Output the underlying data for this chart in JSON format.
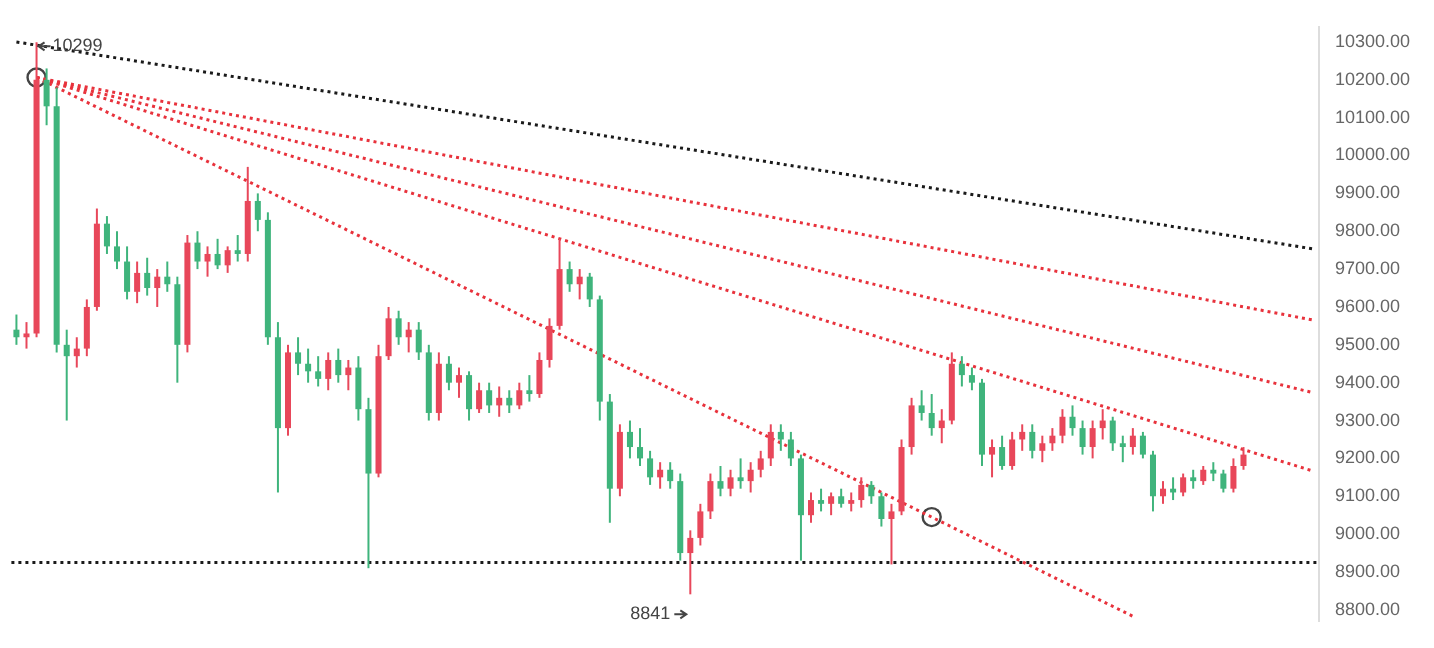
{
  "chart_data": {
    "type": "candlestick",
    "tick_labels": "y",
    "grid": false,
    "legend": false,
    "categories": [
      null,
      null,
      null,
      null,
      null,
      null,
      null,
      null,
      null,
      null,
      null,
      null,
      null,
      null,
      null,
      null,
      null,
      null,
      null,
      null,
      null,
      null,
      null,
      null,
      null,
      null,
      null,
      null,
      null,
      null,
      null,
      null,
      null,
      null,
      null,
      null,
      null,
      null,
      null,
      null,
      null,
      null,
      null,
      null,
      null,
      null,
      null,
      null,
      null,
      null,
      null,
      null,
      null,
      null,
      null,
      null,
      null,
      null,
      null,
      null,
      null,
      null,
      null,
      null,
      null,
      null,
      null,
      null,
      null,
      null,
      null,
      null,
      null,
      null,
      null,
      null,
      null,
      null,
      null,
      null,
      null,
      null,
      null,
      null,
      null,
      null,
      null,
      null,
      null,
      null,
      null,
      null,
      null,
      null,
      null,
      null,
      null,
      null,
      null,
      null,
      null,
      null,
      null,
      null,
      null,
      null,
      null,
      null,
      null,
      null,
      null,
      null,
      null,
      null,
      null,
      null,
      null,
      null,
      null,
      null,
      null,
      null,
      null,
      null,
      null,
      null,
      null,
      null,
      null,
      null
    ],
    "colors": [
      "#3fb47c",
      "#e8475a",
      "#e8475a",
      "#3fb47c",
      "#3fb47c",
      "#3fb47c",
      "#e8475a",
      "#e8475a",
      "#e8475a",
      "#3fb47c",
      "#3fb47c",
      "#3fb47c",
      "#e8475a",
      "#3fb47c",
      "#e8475a",
      "#3fb47c",
      "#3fb47c",
      "#e8475a",
      "#3fb47c",
      "#e8475a",
      "#3fb47c",
      "#e8475a",
      "#3fb47c",
      "#e8475a",
      "#3fb47c",
      "#3fb47c",
      "#3fb47c",
      "#e8475a",
      "#3fb47c",
      "#3fb47c",
      "#3fb47c",
      "#e8475a",
      "#3fb47c",
      "#e8475a",
      "#3fb47c",
      "#3fb47c",
      "#e8475a",
      "#e8475a",
      "#3fb47c",
      "#e8475a",
      "#3fb47c",
      "#3fb47c",
      "#e8475a",
      "#3fb47c",
      "#e8475a",
      "#3fb47c",
      "#e8475a",
      "#3fb47c",
      "#e8475a",
      "#3fb47c",
      "#e8475a",
      "#3fb47c",
      "#e8475a",
      "#e8475a",
      "#e8475a",
      "#3fb47c",
      "#e8475a",
      "#3fb47c",
      "#3fb47c",
      "#3fb47c",
      "#e8475a",
      "#3fb47c",
      "#3fb47c",
      "#3fb47c",
      "#e8475a",
      "#3fb47c",
      "#3fb47c",
      "#e8475a",
      "#e8475a",
      "#e8475a",
      "#3fb47c",
      "#e8475a",
      "#3fb47c",
      "#e8475a",
      "#e8475a",
      "#e8475a",
      "#3fb47c",
      "#3fb47c",
      "#3fb47c",
      "#e8475a",
      "#3fb47c",
      "#e8475a",
      "#3fb47c",
      "#e8475a",
      "#e8475a",
      "#3fb47c",
      "#3fb47c",
      "#e8475a",
      "#e8475a",
      "#e8475a",
      "#3fb47c",
      "#3fb47c",
      "#e8475a",
      "#e8475a",
      "#3fb47c",
      "#3fb47c",
      "#3fb47c",
      "#e8475a",
      "#3fb47c",
      "#e8475a",
      "#e8475a",
      "#3fb47c",
      "#e8475a",
      "#e8475a",
      "#e8475a",
      "#3fb47c",
      "#3fb47c",
      "#e8475a",
      "#e8475a",
      "#3fb47c",
      "#3fb47c",
      "#e8475a",
      "#3fb47c",
      "#3fb47c",
      "#e8475a",
      "#3fb47c",
      "#e8475a",
      "#3fb47c",
      "#e8475a",
      "#3fb47c",
      "#3fb47c",
      "#e8475a",
      "#e8475a",
      null,
      null,
      null,
      null,
      null,
      null,
      null
    ],
    "ohlc": [
      [
        9540,
        9580,
        9500,
        9520
      ],
      [
        9520,
        9560,
        9490,
        9530
      ],
      [
        9530,
        10299,
        9520,
        10200
      ],
      [
        10200,
        10230,
        10080,
        10130
      ],
      [
        10130,
        10180,
        9480,
        9500
      ],
      [
        9500,
        9540,
        9300,
        9470
      ],
      [
        9470,
        9520,
        9440,
        9490
      ],
      [
        9490,
        9620,
        9470,
        9600
      ],
      [
        9600,
        9860,
        9590,
        9820
      ],
      [
        9820,
        9840,
        9740,
        9760
      ],
      [
        9760,
        9800,
        9700,
        9720
      ],
      [
        9720,
        9760,
        9620,
        9640
      ],
      [
        9640,
        9720,
        9610,
        9690
      ],
      [
        9690,
        9730,
        9630,
        9650
      ],
      [
        9650,
        9700,
        9600,
        9680
      ],
      [
        9680,
        9720,
        9640,
        9660
      ],
      [
        9660,
        9680,
        9400,
        9500
      ],
      [
        9500,
        9790,
        9480,
        9770
      ],
      [
        9770,
        9800,
        9700,
        9720
      ],
      [
        9720,
        9760,
        9680,
        9740
      ],
      [
        9740,
        9780,
        9700,
        9710
      ],
      [
        9710,
        9760,
        9690,
        9750
      ],
      [
        9750,
        9790,
        9720,
        9740
      ],
      [
        9740,
        9970,
        9720,
        9880
      ],
      [
        9880,
        9900,
        9800,
        9830
      ],
      [
        9830,
        9850,
        9500,
        9520
      ],
      [
        9520,
        9560,
        9110,
        9280
      ],
      [
        9280,
        9500,
        9260,
        9480
      ],
      [
        9480,
        9520,
        9420,
        9450
      ],
      [
        9450,
        9490,
        9400,
        9430
      ],
      [
        9430,
        9470,
        9390,
        9410
      ],
      [
        9410,
        9480,
        9380,
        9460
      ],
      [
        9460,
        9490,
        9400,
        9420
      ],
      [
        9420,
        9460,
        9380,
        9440
      ],
      [
        9440,
        9470,
        9300,
        9330
      ],
      [
        9330,
        9360,
        8910,
        9160
      ],
      [
        9160,
        9500,
        9150,
        9470
      ],
      [
        9470,
        9600,
        9460,
        9570
      ],
      [
        9570,
        9590,
        9500,
        9520
      ],
      [
        9520,
        9560,
        9480,
        9540
      ],
      [
        9540,
        9560,
        9460,
        9480
      ],
      [
        9480,
        9500,
        9300,
        9320
      ],
      [
        9320,
        9480,
        9300,
        9450
      ],
      [
        9450,
        9470,
        9380,
        9400
      ],
      [
        9400,
        9440,
        9360,
        9420
      ],
      [
        9420,
        9430,
        9300,
        9330
      ],
      [
        9330,
        9400,
        9320,
        9380
      ],
      [
        9380,
        9400,
        9320,
        9340
      ],
      [
        9340,
        9390,
        9310,
        9360
      ],
      [
        9360,
        9380,
        9320,
        9340
      ],
      [
        9340,
        9400,
        9330,
        9380
      ],
      [
        9380,
        9420,
        9350,
        9370
      ],
      [
        9370,
        9480,
        9360,
        9460
      ],
      [
        9460,
        9570,
        9440,
        9550
      ],
      [
        9550,
        9780,
        9540,
        9700
      ],
      [
        9700,
        9720,
        9640,
        9660
      ],
      [
        9660,
        9700,
        9620,
        9680
      ],
      [
        9680,
        9690,
        9600,
        9620
      ],
      [
        9620,
        9630,
        9300,
        9350
      ],
      [
        9350,
        9370,
        9030,
        9120
      ],
      [
        9120,
        9290,
        9100,
        9270
      ],
      [
        9270,
        9300,
        9200,
        9230
      ],
      [
        9230,
        9280,
        9180,
        9200
      ],
      [
        9200,
        9220,
        9130,
        9150
      ],
      [
        9150,
        9190,
        9120,
        9170
      ],
      [
        9170,
        9190,
        9120,
        9140
      ],
      [
        9140,
        9160,
        8930,
        8950
      ],
      [
        8950,
        9010,
        8841,
        8990
      ],
      [
        8990,
        9080,
        8970,
        9060
      ],
      [
        9060,
        9160,
        9040,
        9140
      ],
      [
        9140,
        9180,
        9100,
        9120
      ],
      [
        9120,
        9170,
        9100,
        9150
      ],
      [
        9150,
        9200,
        9120,
        9140
      ],
      [
        9140,
        9190,
        9110,
        9170
      ],
      [
        9170,
        9220,
        9150,
        9200
      ],
      [
        9200,
        9290,
        9180,
        9270
      ],
      [
        9270,
        9290,
        9220,
        9250
      ],
      [
        9250,
        9270,
        9180,
        9200
      ],
      [
        9200,
        9210,
        8930,
        9050
      ],
      [
        9050,
        9110,
        9030,
        9090
      ],
      [
        9090,
        9120,
        9060,
        9080
      ],
      [
        9080,
        9110,
        9050,
        9100
      ],
      [
        9100,
        9120,
        9070,
        9080
      ],
      [
        9080,
        9110,
        9060,
        9090
      ],
      [
        9090,
        9150,
        9070,
        9130
      ],
      [
        9130,
        9140,
        9080,
        9100
      ],
      [
        9100,
        9110,
        9020,
        9040
      ],
      [
        9040,
        9080,
        8920,
        9060
      ],
      [
        9060,
        9250,
        9050,
        9230
      ],
      [
        9230,
        9360,
        9210,
        9340
      ],
      [
        9340,
        9380,
        9300,
        9320
      ],
      [
        9320,
        9370,
        9260,
        9280
      ],
      [
        9280,
        9330,
        9240,
        9300
      ],
      [
        9300,
        9480,
        9290,
        9450
      ],
      [
        9450,
        9470,
        9390,
        9420
      ],
      [
        9420,
        9440,
        9380,
        9400
      ],
      [
        9400,
        9410,
        9180,
        9210
      ],
      [
        9210,
        9250,
        9150,
        9230
      ],
      [
        9230,
        9260,
        9170,
        9180
      ],
      [
        9180,
        9270,
        9170,
        9250
      ],
      [
        9250,
        9290,
        9220,
        9270
      ],
      [
        9270,
        9290,
        9200,
        9220
      ],
      [
        9220,
        9260,
        9190,
        9240
      ],
      [
        9240,
        9280,
        9220,
        9260
      ],
      [
        9260,
        9330,
        9240,
        9310
      ],
      [
        9310,
        9340,
        9260,
        9280
      ],
      [
        9280,
        9300,
        9210,
        9230
      ],
      [
        9230,
        9300,
        9200,
        9280
      ],
      [
        9280,
        9330,
        9250,
        9300
      ],
      [
        9300,
        9310,
        9220,
        9240
      ],
      [
        9240,
        9260,
        9190,
        9230
      ],
      [
        9230,
        9280,
        9210,
        9260
      ],
      [
        9260,
        9270,
        9200,
        9210
      ],
      [
        9210,
        9220,
        9060,
        9100
      ],
      [
        9100,
        9140,
        9080,
        9120
      ],
      [
        9120,
        9150,
        9090,
        9110
      ],
      [
        9110,
        9160,
        9100,
        9150
      ],
      [
        9150,
        9170,
        9120,
        9140
      ],
      [
        9140,
        9180,
        9130,
        9170
      ],
      [
        9170,
        9190,
        9140,
        9160
      ],
      [
        9160,
        9170,
        9110,
        9120
      ],
      [
        9120,
        9200,
        9110,
        9180
      ],
      [
        9180,
        9230,
        9170,
        9210
      ],
      null,
      null,
      null,
      null,
      null,
      null,
      null
    ],
    "series": [
      {
        "type": "line",
        "color": "#1a1a1a",
        "line_style": "dotted",
        "values": [
          10300,
          null,
          null,
          null,
          null,
          null,
          null,
          null,
          null,
          null,
          null,
          null,
          null,
          null,
          null,
          null,
          null,
          null,
          null,
          null,
          null,
          null,
          null,
          null,
          null,
          null,
          null,
          null,
          null,
          null,
          null,
          null,
          null,
          null,
          null,
          null,
          null,
          null,
          null,
          null,
          null,
          null,
          null,
          null,
          null,
          null,
          null,
          null,
          null,
          null,
          null,
          null,
          null,
          null,
          null,
          null,
          null,
          null,
          null,
          null,
          null,
          null,
          null,
          null,
          null,
          null,
          null,
          null,
          null,
          null,
          null,
          null,
          null,
          null,
          null,
          null,
          null,
          null,
          null,
          null,
          null,
          null,
          null,
          null,
          null,
          null,
          null,
          null,
          null,
          null,
          null,
          null,
          null,
          null,
          null,
          null,
          null,
          null,
          null,
          null,
          null,
          null,
          null,
          null,
          null,
          null,
          null,
          null,
          null,
          null,
          null,
          null,
          null,
          null,
          null,
          null,
          null,
          null,
          null,
          null,
          null,
          null,
          null,
          null,
          null,
          null,
          null,
          null,
          null,
          9753
        ]
      },
      {
        "type": "line",
        "color": "#e8323c",
        "line_style": "dotted",
        "values": [
          null,
          null,
          10206,
          null,
          null,
          null,
          null,
          null,
          null,
          null,
          null,
          null,
          null,
          null,
          null,
          null,
          null,
          null,
          null,
          null,
          null,
          null,
          null,
          null,
          null,
          null,
          null,
          null,
          null,
          null,
          null,
          null,
          null,
          null,
          null,
          null,
          null,
          null,
          null,
          null,
          null,
          null,
          null,
          null,
          null,
          null,
          null,
          null,
          null,
          null,
          null,
          null,
          null,
          null,
          null,
          null,
          null,
          null,
          null,
          null,
          null,
          null,
          null,
          null,
          null,
          null,
          null,
          null,
          null,
          null,
          null,
          null,
          null,
          null,
          null,
          null,
          null,
          null,
          null,
          null,
          null,
          null,
          null,
          null,
          null,
          null,
          null,
          null,
          null,
          null,
          null,
          null,
          null,
          null,
          null,
          null,
          null,
          null,
          null,
          null,
          null,
          null,
          null,
          null,
          null,
          null,
          null,
          null,
          null,
          null,
          null,
          null,
          null,
          null,
          null,
          null,
          null,
          null,
          null,
          null,
          null,
          null,
          null,
          null,
          null,
          null,
          null,
          null,
          null,
          9565
        ]
      },
      {
        "type": "line",
        "color": "#e8323c",
        "line_style": "dotted",
        "values": [
          null,
          null,
          10206,
          null,
          null,
          null,
          null,
          null,
          null,
          null,
          null,
          null,
          null,
          null,
          null,
          null,
          null,
          null,
          null,
          null,
          null,
          null,
          null,
          null,
          null,
          null,
          null,
          null,
          null,
          null,
          null,
          null,
          null,
          null,
          null,
          null,
          null,
          null,
          null,
          null,
          null,
          null,
          null,
          null,
          null,
          null,
          null,
          null,
          null,
          null,
          null,
          null,
          null,
          null,
          null,
          null,
          null,
          null,
          null,
          null,
          null,
          null,
          null,
          null,
          null,
          null,
          null,
          null,
          null,
          null,
          null,
          null,
          null,
          null,
          null,
          null,
          null,
          null,
          null,
          null,
          null,
          null,
          null,
          null,
          null,
          null,
          null,
          null,
          null,
          null,
          null,
          null,
          null,
          null,
          null,
          null,
          null,
          null,
          null,
          null,
          null,
          null,
          null,
          null,
          null,
          null,
          null,
          null,
          null,
          null,
          null,
          null,
          null,
          null,
          null,
          null,
          null,
          null,
          null,
          null,
          null,
          null,
          null,
          null,
          null,
          null,
          null,
          null,
          null,
          9373
        ]
      },
      {
        "type": "line",
        "color": "#e8323c",
        "line_style": "dotted",
        "values": [
          null,
          null,
          10206,
          null,
          null,
          null,
          null,
          null,
          null,
          null,
          null,
          null,
          null,
          null,
          null,
          null,
          null,
          null,
          null,
          null,
          null,
          null,
          null,
          null,
          null,
          null,
          null,
          null,
          null,
          null,
          null,
          null,
          null,
          null,
          null,
          null,
          null,
          null,
          null,
          null,
          null,
          null,
          null,
          null,
          null,
          null,
          null,
          null,
          null,
          null,
          null,
          null,
          null,
          null,
          null,
          null,
          null,
          null,
          null,
          null,
          null,
          null,
          null,
          null,
          null,
          null,
          null,
          null,
          null,
          null,
          null,
          null,
          null,
          null,
          null,
          null,
          null,
          null,
          null,
          null,
          null,
          null,
          null,
          null,
          null,
          null,
          null,
          null,
          null,
          null,
          null,
          null,
          null,
          null,
          null,
          null,
          null,
          null,
          null,
          null,
          null,
          null,
          null,
          null,
          null,
          null,
          null,
          null,
          null,
          null,
          null,
          null,
          null,
          null,
          null,
          null,
          null,
          null,
          null,
          null,
          null,
          null,
          null,
          null,
          null,
          null,
          null,
          null,
          null,
          9166
        ]
      },
      {
        "type": "line",
        "color": "#e8323c",
        "line_style": "dotted",
        "values": [
          null,
          null,
          10206,
          null,
          null,
          null,
          null,
          null,
          null,
          null,
          null,
          null,
          null,
          null,
          null,
          null,
          null,
          null,
          null,
          null,
          null,
          null,
          null,
          null,
          null,
          null,
          null,
          null,
          null,
          null,
          null,
          null,
          null,
          null,
          null,
          null,
          null,
          null,
          null,
          null,
          null,
          null,
          null,
          null,
          null,
          null,
          null,
          null,
          null,
          null,
          null,
          null,
          null,
          null,
          null,
          null,
          null,
          null,
          null,
          null,
          null,
          null,
          null,
          null,
          null,
          null,
          null,
          null,
          null,
          null,
          null,
          null,
          null,
          null,
          null,
          null,
          null,
          null,
          null,
          null,
          null,
          null,
          null,
          null,
          null,
          null,
          null,
          null,
          null,
          null,
          null,
          9045,
          null,
          null,
          null,
          null,
          null,
          null,
          null,
          null,
          null,
          null,
          null,
          null,
          null,
          null,
          null,
          null,
          null,
          null,
          null,
          8783,
          null,
          null,
          null,
          null,
          null,
          null,
          null,
          null,
          null,
          null,
          null,
          null,
          null,
          null,
          null,
          null,
          null,
          null
        ]
      },
      {
        "type": "scatter",
        "color": "#444444",
        "marker": "circle",
        "values": [
          null,
          null,
          10206,
          null,
          null,
          null,
          null,
          null,
          null,
          null,
          null,
          null,
          null,
          null,
          null,
          null,
          null,
          null,
          null,
          null,
          null,
          null,
          null,
          null,
          null,
          null,
          null,
          null,
          null,
          null,
          null,
          null,
          null,
          null,
          null,
          null,
          null,
          null,
          null,
          null,
          null,
          null,
          null,
          null,
          null,
          null,
          null,
          null,
          null,
          null,
          null,
          null,
          null,
          null,
          null,
          null,
          null,
          null,
          null,
          null,
          null,
          null,
          null,
          null,
          null,
          null,
          null,
          null,
          null,
          null,
          null,
          null,
          null,
          null,
          null,
          null,
          null,
          null,
          null,
          null,
          null,
          null,
          null,
          null,
          null,
          null,
          null,
          null,
          null,
          null,
          null,
          9045,
          null,
          null,
          null,
          null,
          null,
          null,
          null,
          null,
          null,
          null,
          null,
          null,
          null,
          null,
          null,
          null,
          null,
          null,
          null,
          null,
          null,
          null,
          null,
          null,
          null,
          null,
          null,
          null,
          null,
          null,
          null,
          null,
          null,
          null,
          null,
          null,
          null,
          null
        ]
      }
    ],
    "ref_lines": [
      {
        "axis": "y",
        "value": 8925,
        "color": "#1a1a1a",
        "line_style": "dotted"
      }
    ],
    "annotations": [
      {
        "text": "10299",
        "y": 10299
      },
      "8841"
    ],
    "ylim": [
      8770,
      10340
    ],
    "yticks": [
      {
        "value": 8800,
        "label": "8800.00"
      },
      {
        "value": 8900,
        "label": "8900.00"
      },
      {
        "value": 9000,
        "label": "9000.00"
      },
      {
        "value": 9100,
        "label": "9100.00"
      },
      {
        "value": 9200,
        "label": "9200.00"
      },
      {
        "value": 9300,
        "label": "9300.00"
      },
      {
        "value": 9400,
        "label": "9400.00"
      },
      {
        "value": 9500,
        "label": "9500.00"
      },
      {
        "value": 9600,
        "label": "9600.00"
      },
      {
        "value": 9700,
        "label": "9700.00"
      },
      {
        "value": 9800,
        "label": "9800.00"
      },
      {
        "value": 9900,
        "label": "9900.00"
      },
      {
        "value": 10000,
        "label": "10000.00"
      },
      {
        "value": 10100,
        "label": "10100.00"
      },
      {
        "value": 10200,
        "label": "10200.00"
      },
      {
        "value": 10300,
        "label": "10300.00"
      }
    ]
  }
}
